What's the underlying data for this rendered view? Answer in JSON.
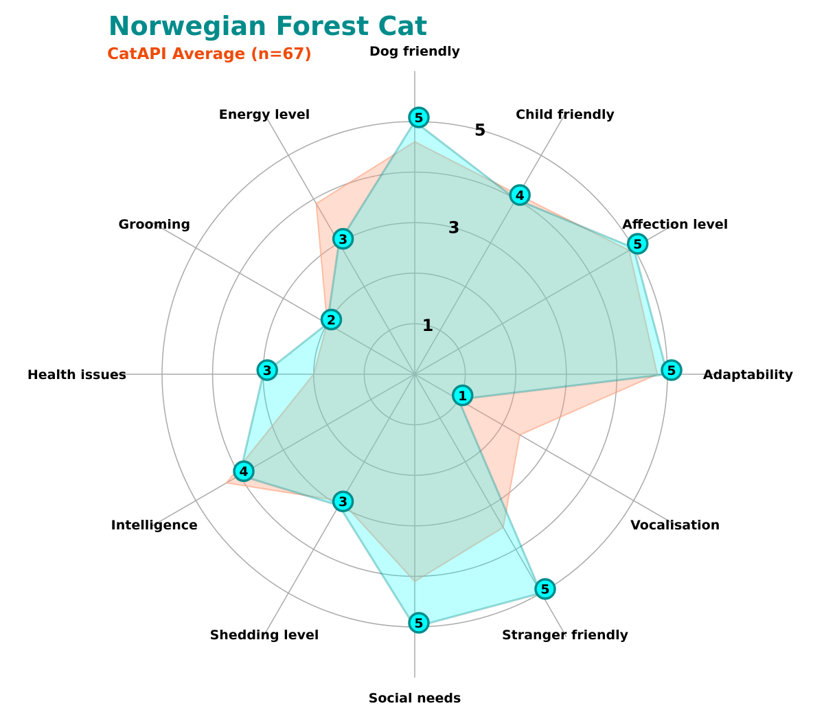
{
  "colors": {
    "breed": "#00ffff",
    "breed_edge": "#008b8b",
    "average": "#ff9f7a",
    "title": "#008b8b",
    "subtitle": "#ee4b0a",
    "grid": "#aaaaaa"
  },
  "chart_data": {
    "type": "radar",
    "title": "Norwegian Forest Cat",
    "subtitle": "CatAPI Average (n=67)",
    "rmax": 5,
    "grid_rings": [
      1,
      2,
      3,
      4,
      5
    ],
    "tick_labels": [
      "1",
      "3",
      "5"
    ],
    "tick_values": [
      1,
      3,
      5
    ],
    "axes": [
      "Adaptability",
      "Affection level",
      "Child friendly",
      "Dog friendly",
      "Energy level",
      "Grooming",
      "Health issues",
      "Intelligence",
      "Shedding level",
      "Social needs",
      "Stranger friendly",
      "Vocalisation"
    ],
    "series": [
      {
        "name": "CatAPI Average (n=67)",
        "values": [
          4.8,
          4.9,
          4.1,
          4.6,
          3.9,
          2.0,
          2.0,
          4.3,
          2.9,
          4.1,
          3.5,
          2.4
        ]
      },
      {
        "values": [
          5,
          5,
          4,
          5,
          3,
          2,
          3,
          4,
          3,
          5,
          5,
          1
        ]
      }
    ]
  }
}
